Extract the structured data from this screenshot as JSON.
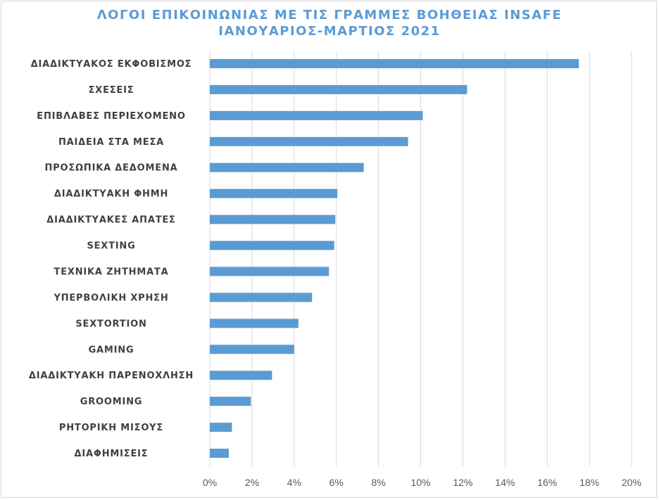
{
  "chart_data": {
    "type": "bar",
    "orientation": "horizontal",
    "title": "ΛΟΓΟΙ ΕΠΙΚΟΙΝΩΝΙΑΣ ΜΕ ΤΙΣ ΓΡΑΜΜΕΣ ΒΟΗΘΕΙΑΣ INSAFE",
    "subtitle": "ΙΑΝΟΥΑΡΙΟΣ-ΜΑΡΤΙΟΣ 2021",
    "xlabel": "",
    "ylabel": "",
    "xlim": [
      0,
      20
    ],
    "x_ticks": [
      "0%",
      "2%",
      "4%",
      "6%",
      "8%",
      "10%",
      "12%",
      "14%",
      "16%",
      "18%",
      "20%"
    ],
    "grid": true,
    "bar_color": "#5b9bd5",
    "categories": [
      "ΔΙΑΔΙΚΤΥΑΚΟΣ ΕΚΦΟΒΙΣΜΟΣ",
      "ΣΧΕΣΕΙΣ",
      "ΕΠΙΒΛΑΒΕΣ ΠΕΡΙΕΧΟΜΕΝΟ",
      "ΠΑΙΔΕΙΑ ΣΤΑ ΜΕΣΑ",
      "ΠΡΟΣΩΠΙΚΑ ΔΕΔΟΜΕΝΑ",
      "ΔΙΑΔΙΚΤΥΑΚΗ ΦΗΜΗ",
      "ΔΙΑΔΙΚΤΥΑΚΕΣ ΑΠΑΤΕΣ",
      "SEXTING",
      "ΤΕΧΝΙΚΑ ΖΗΤΗΜΑΤΑ",
      "ΥΠΕΡΒΟΛΙΚΗ ΧΡΗΣΗ",
      "SEXTORTION",
      "GAMING",
      "ΔΙΑΔΙΚΤΥΑΚΗ ΠΑΡΕΝΟΧΛΗΣΗ",
      "GROOMING",
      "ΡΗΤΟΡΙΚΗ ΜΙΣΟΥΣ",
      "ΔΙΑΦΗΜΙΣΕΙΣ"
    ],
    "values": [
      17.5,
      12.2,
      10.1,
      9.4,
      7.3,
      6.05,
      5.95,
      5.9,
      5.65,
      4.85,
      4.2,
      4.0,
      2.95,
      1.95,
      1.05,
      0.9
    ]
  }
}
